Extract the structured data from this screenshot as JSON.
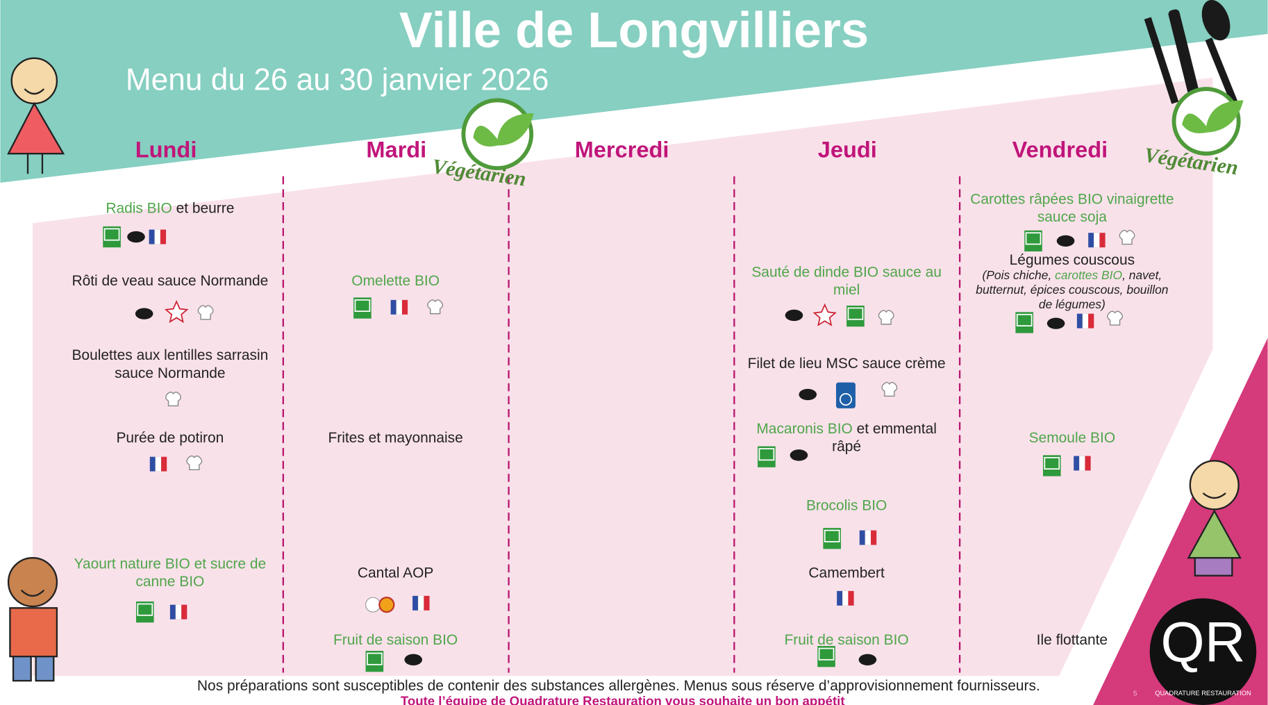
{
  "header": {
    "title": "Ville de Longvilliers",
    "subtitle": "Menu du 26 au 30 janvier 2026"
  },
  "stamps": [
    "Végétarien",
    "Végétarien"
  ],
  "days": [
    {
      "name": "Lundi",
      "items": [
        {
          "lines": [
            [
              {
                "t": "Radis BIO",
                "bio": true
              },
              {
                "t": " et beurre",
                "bio": false
              }
            ]
          ]
        },
        {
          "lines": [
            [
              {
                "t": "Rôti de veau sauce Normande",
                "bio": false
              }
            ]
          ]
        },
        {
          "lines": [
            [
              {
                "t": "Boulettes aux lentilles sarrasin",
                "bio": false
              }
            ],
            [
              {
                "t": "sauce Normande",
                "bio": false
              }
            ]
          ]
        },
        {
          "lines": [
            [
              {
                "t": "Purée de potiron",
                "bio": false
              }
            ]
          ]
        },
        {
          "lines": [
            [
              {
                "t": "Yaourt nature BIO et sucre de",
                "bio": true
              }
            ],
            [
              {
                "t": "canne BIO",
                "bio": true
              }
            ]
          ]
        }
      ]
    },
    {
      "name": "Mardi",
      "items": [
        {
          "lines": [
            [
              {
                "t": "Omelette BIO",
                "bio": true
              }
            ]
          ]
        },
        {
          "lines": [
            [
              {
                "t": "Frites et mayonnaise",
                "bio": false
              }
            ]
          ]
        },
        {
          "lines": [
            [
              {
                "t": "Cantal AOP",
                "bio": false
              }
            ]
          ]
        },
        {
          "lines": [
            [
              {
                "t": "Fruit de saison BIO",
                "bio": true
              }
            ]
          ]
        }
      ]
    },
    {
      "name": "Mercredi",
      "items": []
    },
    {
      "name": "Jeudi",
      "items": [
        {
          "lines": [
            [
              {
                "t": "Sauté de dinde BIO sauce au",
                "bio": true
              }
            ],
            [
              {
                "t": "miel",
                "bio": true
              }
            ]
          ]
        },
        {
          "lines": [
            [
              {
                "t": "Filet de lieu MSC sauce crème",
                "bio": false
              }
            ]
          ]
        },
        {
          "lines": [
            [
              {
                "t": "Macaronis BIO",
                "bio": true
              },
              {
                "t": " et emmental",
                "bio": false
              }
            ],
            [
              {
                "t": "râpé",
                "bio": false
              }
            ]
          ]
        },
        {
          "lines": [
            [
              {
                "t": "Brocolis BIO",
                "bio": true
              }
            ]
          ]
        },
        {
          "lines": [
            [
              {
                "t": "Camembert",
                "bio": false
              }
            ]
          ]
        },
        {
          "lines": [
            [
              {
                "t": "Fruit de saison BIO",
                "bio": true
              }
            ]
          ]
        }
      ]
    },
    {
      "name": "Vendredi",
      "items": [
        {
          "lines": [
            [
              {
                "t": "Carottes râpées BIO vinaigrette",
                "bio": true
              }
            ],
            [
              {
                "t": "sauce soja",
                "bio": true
              }
            ]
          ]
        },
        {
          "lines": [
            [
              {
                "t": "Légumes couscous",
                "bio": false
              }
            ]
          ]
        },
        {
          "italic": true,
          "lines": [
            [
              {
                "t": "(Pois chiche, ",
                "bio": false
              },
              {
                "t": "carottes BIO",
                "bio": true
              },
              {
                "t": ", navet,",
                "bio": false
              }
            ],
            [
              {
                "t": "butternut, épices couscous, bouillon",
                "bio": false
              }
            ],
            [
              {
                "t": "de légumes)",
                "bio": false
              }
            ]
          ]
        },
        {
          "lines": [
            [
              {
                "t": "Semoule BIO",
                "bio": true
              }
            ]
          ]
        },
        {
          "lines": [
            [
              {
                "t": "Ile flottante",
                "bio": false
              }
            ]
          ]
        }
      ]
    }
  ],
  "footer": {
    "notice": "Nos préparations sont susceptibles de contenir des substances allergènes. Menus sous réserve d’approvisionnement fournisseurs.",
    "wish": "Toute l’équipe de Quadrature Restauration vous souhaite un bon appétit"
  },
  "logo": {
    "mark": "QR",
    "name": "QUADRATURE RESTAURATION"
  },
  "page_number": "5"
}
